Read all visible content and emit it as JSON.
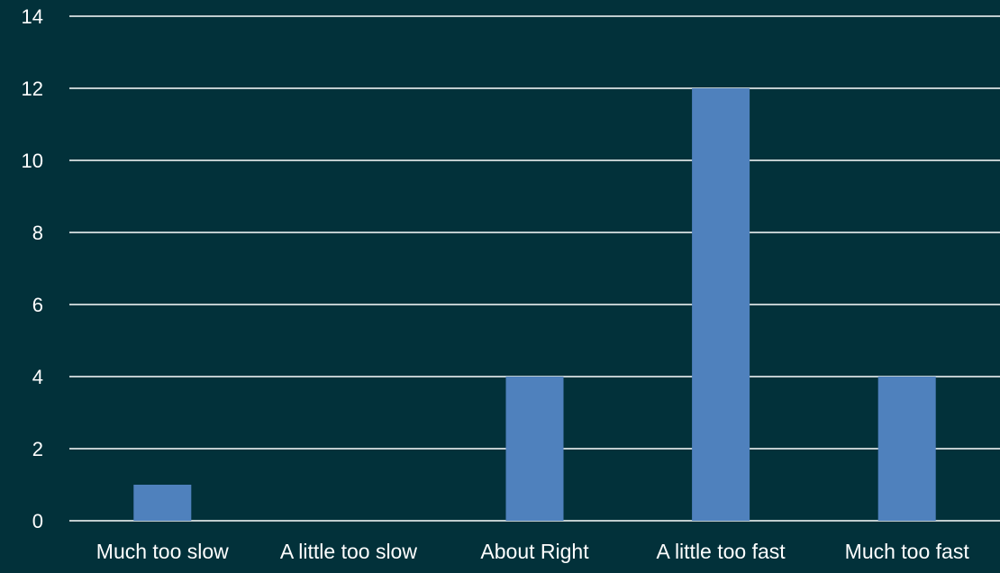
{
  "chart_data": {
    "type": "bar",
    "categories": [
      "Much too slow",
      "A little too slow",
      "About Right",
      "A little too fast",
      "Much too fast"
    ],
    "values": [
      1,
      0,
      4,
      12,
      4
    ],
    "ylim": [
      0,
      14
    ],
    "yticks": [
      0,
      2,
      4,
      6,
      8,
      10,
      12,
      14
    ],
    "grid": true,
    "legend": "none"
  },
  "colors": {
    "background": "#02313a",
    "bar": "#4f81bd",
    "grid": "#ffffff",
    "text": "#ffffff"
  }
}
